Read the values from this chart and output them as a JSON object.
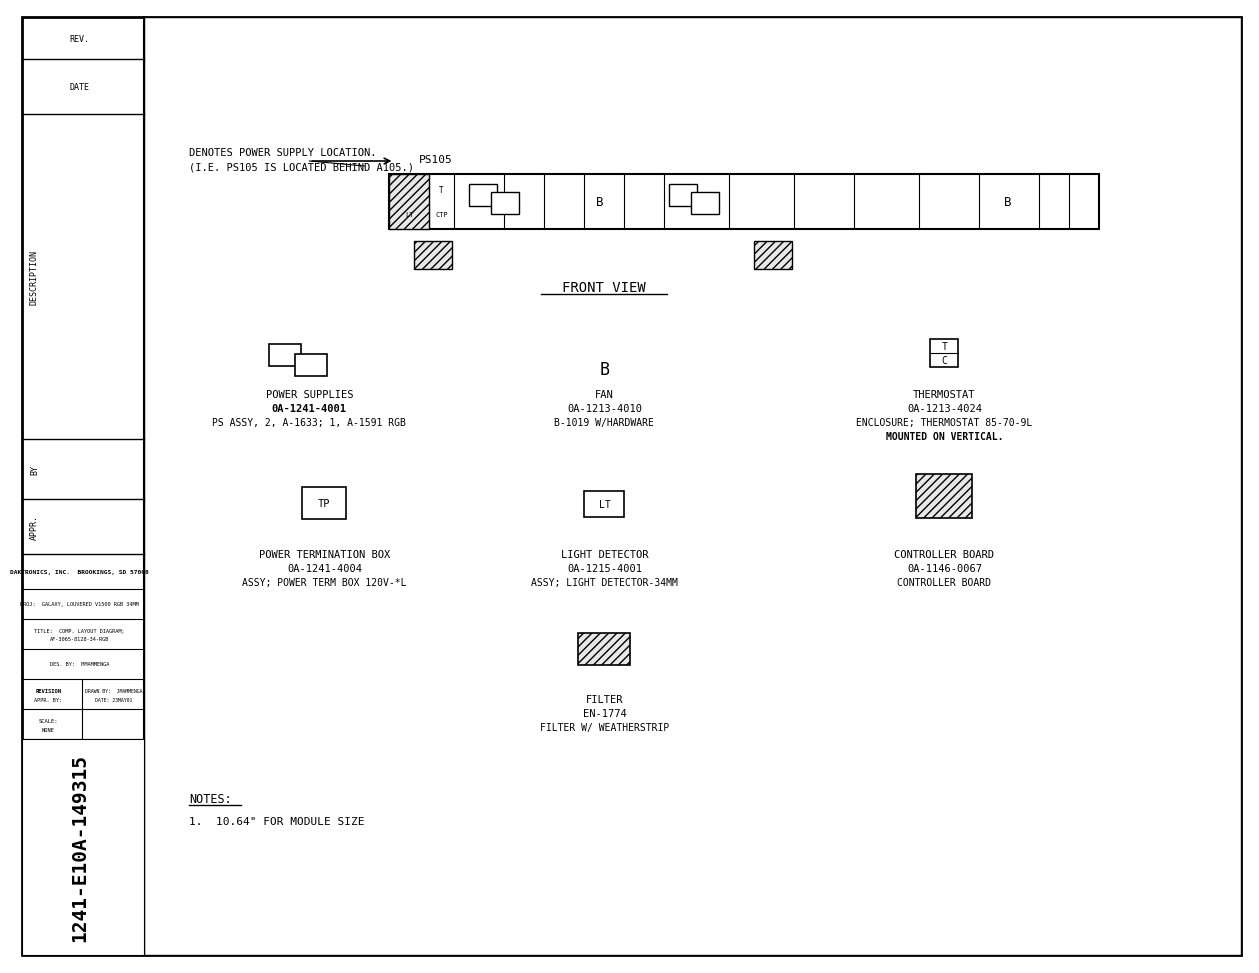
{
  "bg_color": "#ffffff",
  "title": "FRONT VIEW",
  "denotes_text_1": "DENOTES POWER SUPPLY LOCATION.",
  "denotes_text_2": "(I.E. PS105 IS LOCATED BEHIND A105.)",
  "ps105_label": "PS105",
  "power_supplies_label": "POWER SUPPLIES",
  "power_supplies_pn": "0A-1241-4001",
  "power_supplies_desc": "PS ASSY, 2, A-1633; 1, A-1591 RGB",
  "fan_label": "FAN",
  "fan_b_label": "B",
  "fan_pn": "0A-1213-4010",
  "fan_desc": "B-1019 W/HARDWARE",
  "thermostat_label": "THERMOSTAT",
  "thermostat_pn": "0A-1213-4024",
  "thermostat_desc1": "ENCLOSURE; THERMOSTAT 85-70-9L",
  "thermostat_desc2": "MOUNTED ON VERTICAL.",
  "power_term_label": "POWER TERMINATION BOX",
  "power_term_pn": "0A-1241-4004",
  "power_term_desc": "ASSY; POWER TERM BOX 120V-*L",
  "light_det_label": "LIGHT DETECTOR",
  "light_det_pn": "0A-1215-4001",
  "light_det_desc": "ASSY; LIGHT DETECTOR-34MM",
  "ctrl_board_label": "CONTROLLER BOARD",
  "ctrl_board_pn": "0A-1146-0067",
  "ctrl_board_desc": "CONTROLLER BOARD",
  "filter_label": "FILTER",
  "filter_pn": "EN-1774",
  "filter_desc": "FILTER W/ WEATHERSTRIP",
  "note_header": "NOTES:",
  "note_1": "1.  10.64\" FOR MODULE SIZE",
  "company_name": "DAKTRONICS, INC.  BROOKINGS, SD 57006",
  "proj_text": "PROJ:  GALAXY, LOUVERED V1500 RGB 34MM",
  "title_text1": "TITLE:  COMP. LAYOUT DIAGRAM;",
  "title_text2": "AF-3065-8128-34-RGB",
  "des_by_text": "DES. BY:  MMAMMENGA",
  "revision_text": "REVISION",
  "appr_by_text": "APPR. BY:",
  "drawn_by_text": "DRAWN BY:  JMAMMENGA",
  "date_text": "DATE: 23MAY01",
  "scale_label": "SCALE:",
  "scale_value": "NONE",
  "doc_number": "1241-E10A-149315"
}
